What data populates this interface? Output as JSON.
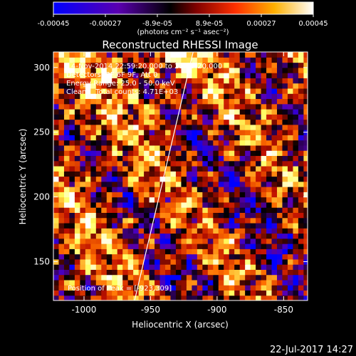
{
  "chart_data": {
    "type": "heatmap",
    "title": "Reconstructed RHESSI Image",
    "xlabel": "Heliocentric X (arcsec)",
    "ylabel": "Heliocentric Y (arcsec)",
    "x_ticks": [
      -1000,
      -950,
      -900,
      -850
    ],
    "y_ticks": [
      150,
      200,
      250,
      300
    ],
    "xlim": [
      -1023,
      -832
    ],
    "ylim": [
      120,
      312
    ],
    "colorbar": {
      "range": [
        -0.00045,
        0.00045
      ],
      "ticks": [
        "-0.00045",
        "-0.00027",
        "-8.9e-05",
        "8.9e-05",
        "0.00027",
        "0.00045"
      ],
      "units_label": "(photons cm⁻² s⁻¹ asec⁻²)",
      "colormap": [
        "#0000ff",
        "#5a00b0",
        "#000000",
        "#c01000",
        "#ff7000",
        "#ffff60",
        "#ffffff"
      ]
    },
    "annotations": {
      "time_range": "4-Nov-2014 22:59:20.000 to 23:09:20.000",
      "detectors": "Detectors: 3F 6F 9F, Att 0",
      "energy": "Energy Range: 25.0 - 50.0 keV",
      "counts": "Clean    Total counts: 4.71E+03",
      "peak": "Position of Peak = [-923,309]"
    },
    "limb_line": [
      [
        -962,
        120
      ],
      [
        -918,
        312
      ]
    ],
    "peak_position": [
      -923,
      309
    ],
    "footer_date": "22-Jul-2017 14:27"
  }
}
